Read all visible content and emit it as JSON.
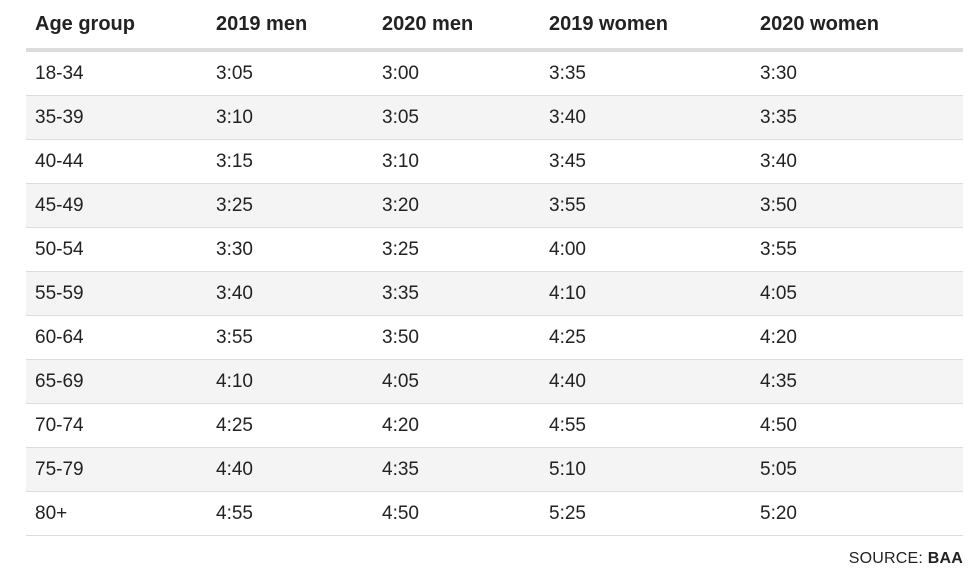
{
  "table": {
    "headers": [
      "Age group",
      "2019 men",
      "2020 men",
      "2019 women",
      "2020 women"
    ],
    "rows": [
      [
        "18-34",
        "3:05",
        "3:00",
        "3:35",
        "3:30"
      ],
      [
        "35-39",
        "3:10",
        "3:05",
        "3:40",
        "3:35"
      ],
      [
        "40-44",
        "3:15",
        "3:10",
        "3:45",
        "3:40"
      ],
      [
        "45-49",
        "3:25",
        "3:20",
        "3:55",
        "3:50"
      ],
      [
        "50-54",
        "3:30",
        "3:25",
        "4:00",
        "3:55"
      ],
      [
        "55-59",
        "3:40",
        "3:35",
        "4:10",
        "4:05"
      ],
      [
        "60-64",
        "3:55",
        "3:50",
        "4:25",
        "4:20"
      ],
      [
        "65-69",
        "4:10",
        "4:05",
        "4:40",
        "4:35"
      ],
      [
        "70-74",
        "4:25",
        "4:20",
        "4:55",
        "4:50"
      ],
      [
        "75-79",
        "4:40",
        "4:35",
        "5:10",
        "5:05"
      ],
      [
        "80+",
        "4:55",
        "4:50",
        "5:25",
        "5:20"
      ]
    ]
  },
  "source": {
    "label": "SOURCE: ",
    "name": "BAA"
  },
  "colors": {
    "text": "#222222",
    "row_stripe": "#f4f4f4",
    "row_divider": "#dddddd",
    "header_rule": "#dcdcdc"
  }
}
